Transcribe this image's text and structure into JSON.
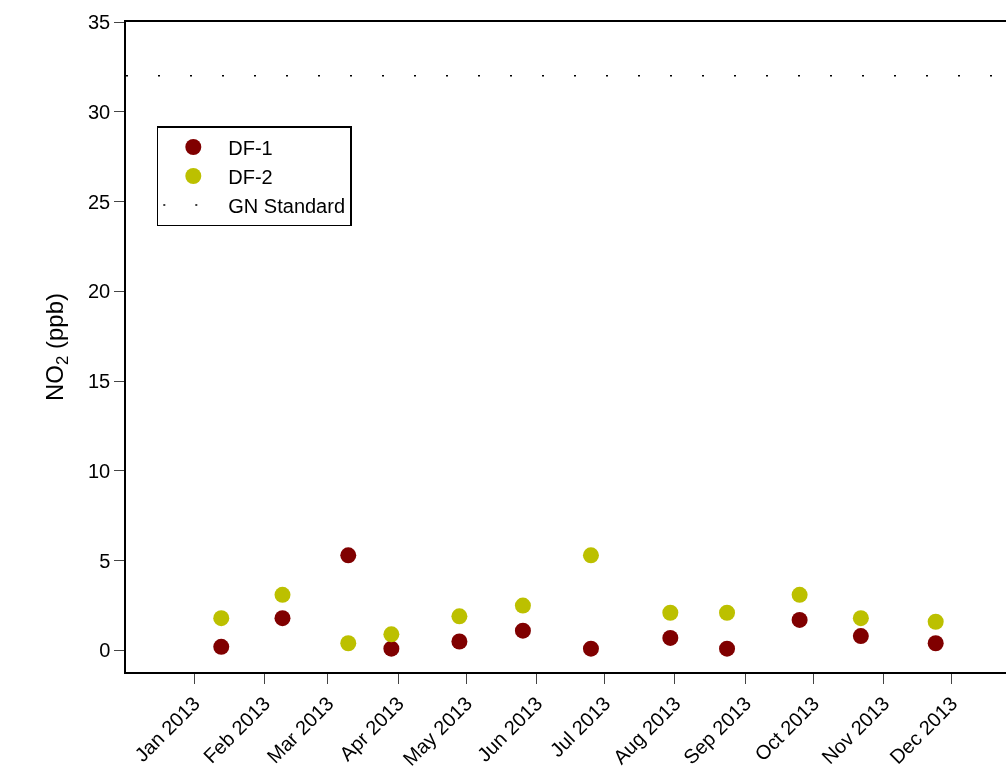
{
  "chart_data": {
    "type": "scatter",
    "ylabel": "NO$_{2}$ (ppb)",
    "series": [
      {
        "name": "DF-1",
        "color": "#800000",
        "x": [
          "2013-01-13",
          "2013-02-09",
          "2013-03-10",
          "2013-03-29",
          "2013-04-28",
          "2013-05-26",
          "2013-06-25",
          "2013-07-30",
          "2013-08-24",
          "2013-09-25",
          "2013-10-22",
          "2013-11-24"
        ],
        "values": [
          0.2,
          1.8,
          5.3,
          0.1,
          0.5,
          1.1,
          0.1,
          0.7,
          0.1,
          1.7,
          0.8,
          0.4
        ]
      },
      {
        "name": "DF-2",
        "color": "#bcc000",
        "x": [
          "2013-01-13",
          "2013-02-09",
          "2013-03-10",
          "2013-03-29",
          "2013-04-28",
          "2013-05-26",
          "2013-06-25",
          "2013-07-30",
          "2013-08-24",
          "2013-09-25",
          "2013-10-22",
          "2013-11-24"
        ],
        "values": [
          1.8,
          3.1,
          0.4,
          0.9,
          1.9,
          2.5,
          5.3,
          2.1,
          2.1,
          3.1,
          1.8,
          1.6
        ]
      }
    ],
    "ref_lines": [
      {
        "axis": "y",
        "value": 32,
        "label": "GN Standard",
        "color": "#000000",
        "line_style": "dotted"
      }
    ],
    "xlim": [
      "2012-12-02",
      "2013-12-25"
    ],
    "xticks": [
      {
        "value": "2013-01-01",
        "label": "Jan 2013"
      },
      {
        "value": "2013-02-01",
        "label": "Feb 2013"
      },
      {
        "value": "2013-03-01",
        "label": "Mar 2013"
      },
      {
        "value": "2013-04-01",
        "label": "Apr 2013"
      },
      {
        "value": "2013-05-01",
        "label": "May 2013"
      },
      {
        "value": "2013-06-01",
        "label": "Jun 2013"
      },
      {
        "value": "2013-07-01",
        "label": "Jul 2013"
      },
      {
        "value": "2013-08-01",
        "label": "Aug 2013"
      },
      {
        "value": "2013-09-01",
        "label": "Sep 2013"
      },
      {
        "value": "2013-10-01",
        "label": "Oct 2013"
      },
      {
        "value": "2013-11-01",
        "label": "Nov 2013"
      },
      {
        "value": "2013-12-01",
        "label": "Dec 2013"
      }
    ],
    "ylim": [
      -1.2,
      35
    ],
    "yticks": [
      0,
      5,
      10,
      15,
      20,
      25,
      30,
      35
    ],
    "legend": "top left",
    "marker": "circle"
  }
}
